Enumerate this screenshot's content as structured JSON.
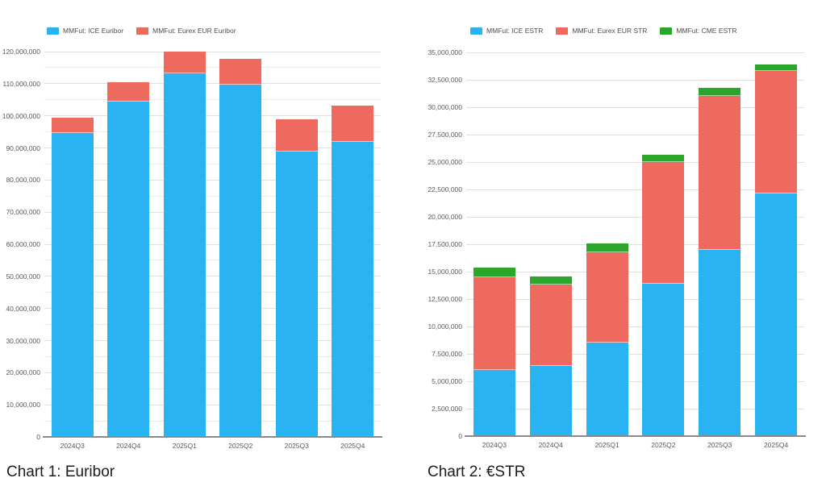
{
  "chart_data": [
    {
      "type": "bar",
      "stacked": true,
      "caption": "Chart 1: Euribor",
      "legend_position": "top",
      "grid": true,
      "categories": [
        "2024Q3",
        "2024Q4",
        "2025Q1",
        "2025Q2",
        "2025Q3",
        "2025Q4"
      ],
      "series": [
        {
          "name": "MMFut: ICE Euribor",
          "color": "#29b3f2",
          "values": [
            94700000,
            104500000,
            113300000,
            109700000,
            89000000,
            91800000
          ]
        },
        {
          "name": "MMFut: Eurex EUR Euribor",
          "color": "#ee6a5f",
          "values": [
            4800000,
            6000000,
            6600000,
            8000000,
            10000000,
            11300000
          ]
        }
      ],
      "ylim": [
        0,
        120000000
      ],
      "yticks": [
        0,
        10000000,
        20000000,
        30000000,
        40000000,
        50000000,
        60000000,
        70000000,
        80000000,
        90000000,
        100000000,
        110000000,
        120000000
      ],
      "minor_grid_step": 5000000
    },
    {
      "type": "bar",
      "stacked": true,
      "caption": "Chart 2: €STR",
      "legend_position": "top",
      "grid": true,
      "categories": [
        "2024Q3",
        "2024Q4",
        "2025Q1",
        "2025Q2",
        "2025Q3",
        "2025Q4"
      ],
      "series": [
        {
          "name": "MMFut: ICE ESTR",
          "color": "#29b3f2",
          "values": [
            6000000,
            6400000,
            8500000,
            13900000,
            17000000,
            22100000
          ]
        },
        {
          "name": "MMFut: Eurex EUR STR",
          "color": "#ee6a5f",
          "values": [
            8500000,
            7400000,
            8300000,
            11100000,
            14000000,
            11200000
          ]
        },
        {
          "name": "MMFut: CME ESTR",
          "color": "#2ba62b",
          "values": [
            900000,
            800000,
            800000,
            700000,
            800000,
            600000
          ]
        }
      ],
      "ylim": [
        0,
        35000000
      ],
      "yticks": [
        0,
        2500000,
        5000000,
        7500000,
        10000000,
        12500000,
        15000000,
        17500000,
        20000000,
        22500000,
        25000000,
        27500000,
        30000000,
        32500000,
        35000000
      ],
      "minor_grid_step": 2500000
    }
  ]
}
